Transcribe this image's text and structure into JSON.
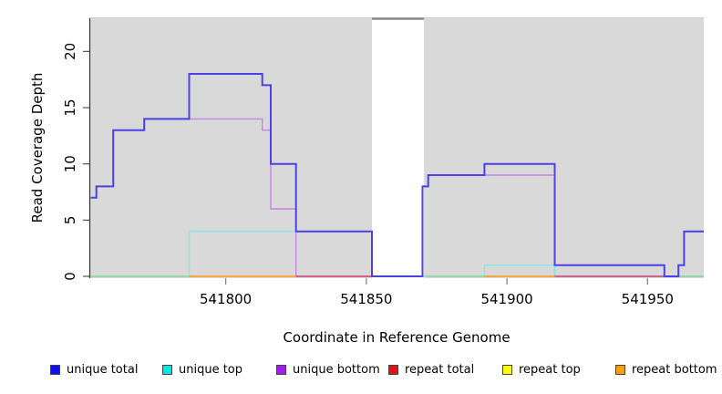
{
  "chart_data": {
    "type": "line",
    "subtype": "step-coverage-plot",
    "title": "",
    "xlabel": "Coordinate in Reference Genome",
    "ylabel": "Read Coverage Depth",
    "xlim": [
      541751.5,
      541970
    ],
    "ylim": [
      0,
      22.95
    ],
    "xticks": [
      541800,
      541850,
      541900,
      541950
    ],
    "yticks": [
      0,
      5,
      10,
      15,
      20
    ],
    "grid": false,
    "legend_position": "bottom",
    "no_data_gap_x": [
      541852,
      541870.5
    ],
    "colors": {
      "unique_total_line": "#4b41e6",
      "unique_top_line": "#86e8ea",
      "unique_bottom_line": "#c685e3",
      "repeat_total_line": "#d04b72",
      "repeat_bottom_line": "#ff9715",
      "overlap_green": "#8fd795",
      "panel": "#d9d9d9",
      "panel_top_edge": "#cfcfcf",
      "gap_top_border": "#8a8a8a",
      "axis": "#333333",
      "tick": "#888888"
    },
    "series": [
      {
        "name": "unique total",
        "color_key": "unique_total_line",
        "width": 2,
        "points": [
          [
            541752,
            7
          ],
          [
            541754,
            8
          ],
          [
            541760,
            13
          ],
          [
            541771,
            14
          ],
          [
            541787,
            18
          ],
          [
            541813,
            17
          ],
          [
            541816,
            10
          ],
          [
            541825,
            4
          ],
          [
            541852,
            0
          ],
          [
            541870,
            8
          ],
          [
            541872,
            9
          ],
          [
            541892,
            10
          ],
          [
            541917,
            1
          ],
          [
            541956,
            0
          ],
          [
            541961,
            1
          ],
          [
            541963,
            4
          ]
        ]
      },
      {
        "name": "unique top",
        "color_key": "unique_top_line",
        "width": 1.4,
        "points": [
          [
            541752,
            0
          ],
          [
            541787,
            4
          ],
          [
            541852,
            0
          ],
          [
            541892,
            1
          ],
          [
            541917,
            0
          ]
        ]
      },
      {
        "name": "unique bottom",
        "color_key": "unique_bottom_line",
        "width": 1.4,
        "points": [
          [
            541752,
            7
          ],
          [
            541754,
            8
          ],
          [
            541760,
            13
          ],
          [
            541771,
            14
          ],
          [
            541813,
            13
          ],
          [
            541816,
            6
          ],
          [
            541825,
            0
          ],
          [
            541870,
            8
          ],
          [
            541872,
            9
          ],
          [
            541917,
            0
          ]
        ]
      },
      {
        "name": "repeat total",
        "color_key": "repeat_total_line",
        "width": 1.6,
        "draw": false,
        "points": [
          [
            541752,
            0
          ]
        ]
      },
      {
        "name": "repeat top",
        "color_key": "overlap_green",
        "width": 1.6,
        "draw": false,
        "points": [
          [
            541752,
            0
          ]
        ]
      },
      {
        "name": "repeat bottom",
        "color_key": "repeat_bottom_line",
        "width": 1.6,
        "draw": false,
        "points": [
          [
            541752,
            0
          ]
        ]
      }
    ],
    "baseline_segments": [
      {
        "from": 541752,
        "to": 541787,
        "color_key": "overlap_green"
      },
      {
        "from": 541787,
        "to": 541825,
        "color_key": "repeat_bottom_line"
      },
      {
        "from": 541825,
        "to": 541852,
        "color_key": "repeat_total_line"
      },
      {
        "from": 541871,
        "to": 541892,
        "color_key": "overlap_green"
      },
      {
        "from": 541892,
        "to": 541917,
        "color_key": "repeat_bottom_line"
      },
      {
        "from": 541917,
        "to": 541956,
        "color_key": "repeat_total_line"
      },
      {
        "from": 541961,
        "to": 541970,
        "color_key": "overlap_green"
      }
    ],
    "legend": [
      {
        "label": "unique total",
        "swatch": "#1010e8"
      },
      {
        "label": "unique top",
        "swatch": "#00e6e6"
      },
      {
        "label": "unique bottom",
        "swatch": "#a21fe8"
      },
      {
        "label": "repeat total",
        "swatch": "#ea1010"
      },
      {
        "label": "repeat top",
        "swatch": "#fbfb00"
      },
      {
        "label": "repeat bottom",
        "swatch": "#ffa008"
      }
    ]
  }
}
